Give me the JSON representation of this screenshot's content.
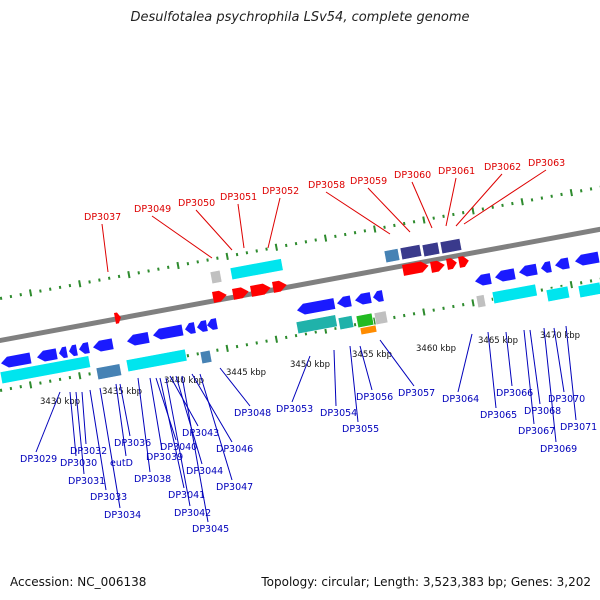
{
  "title": "Desulfotalea psychrophila LSv54, complete genome",
  "footer": {
    "accession": "Accession: NC_006138",
    "summary": "Topology: circular; Length: 3,523,383 bp; Genes: 3,202"
  },
  "colors": {
    "backbone": "#808080",
    "ticks": "#2e8b2e",
    "gene_label_top": "#dd0000",
    "gene_label_bottom": "#0000bb",
    "forward_gene": "#ff0000",
    "reverse_gene": "#1a1aff",
    "cds_cyan": "#00e5ee",
    "cds_teal": "#20b2aa",
    "cds_navy": "#3a3a8c",
    "cds_blue": "#4682b4",
    "cds_gray": "#c0c0c0",
    "cds_green": "#22bb22",
    "cds_orange": "#ff8c00"
  },
  "kbp_labels": [
    "3430 kbp",
    "3435 kbp",
    "3440 kbp",
    "3445 kbp",
    "3450 kbp",
    "3455 kbp",
    "3460 kbp",
    "3465 kbp",
    "3470 kbp"
  ],
  "top_genes": [
    "DP3037",
    "DP3049",
    "DP3050",
    "DP3051",
    "DP3052",
    "DP3058",
    "DP3059",
    "DP3060",
    "DP3061",
    "DP3062",
    "DP3063"
  ],
  "bottom_genes": [
    "DP3029",
    "DP3030",
    "DP3031",
    "DP3032",
    "DP3033",
    "DP3034",
    "eutD",
    "DP3036",
    "DP3038",
    "DP3039",
    "DP3040",
    "DP3041",
    "DP3042",
    "DP3043",
    "DP3044",
    "DP3045",
    "DP3046",
    "DP3047",
    "DP3048",
    "DP3053",
    "DP3054",
    "DP3055",
    "DP3056",
    "DP3057",
    "DP3064",
    "DP3065",
    "DP3066",
    "DP3067",
    "DP3068",
    "DP3069",
    "DP3070",
    "DP3071"
  ]
}
